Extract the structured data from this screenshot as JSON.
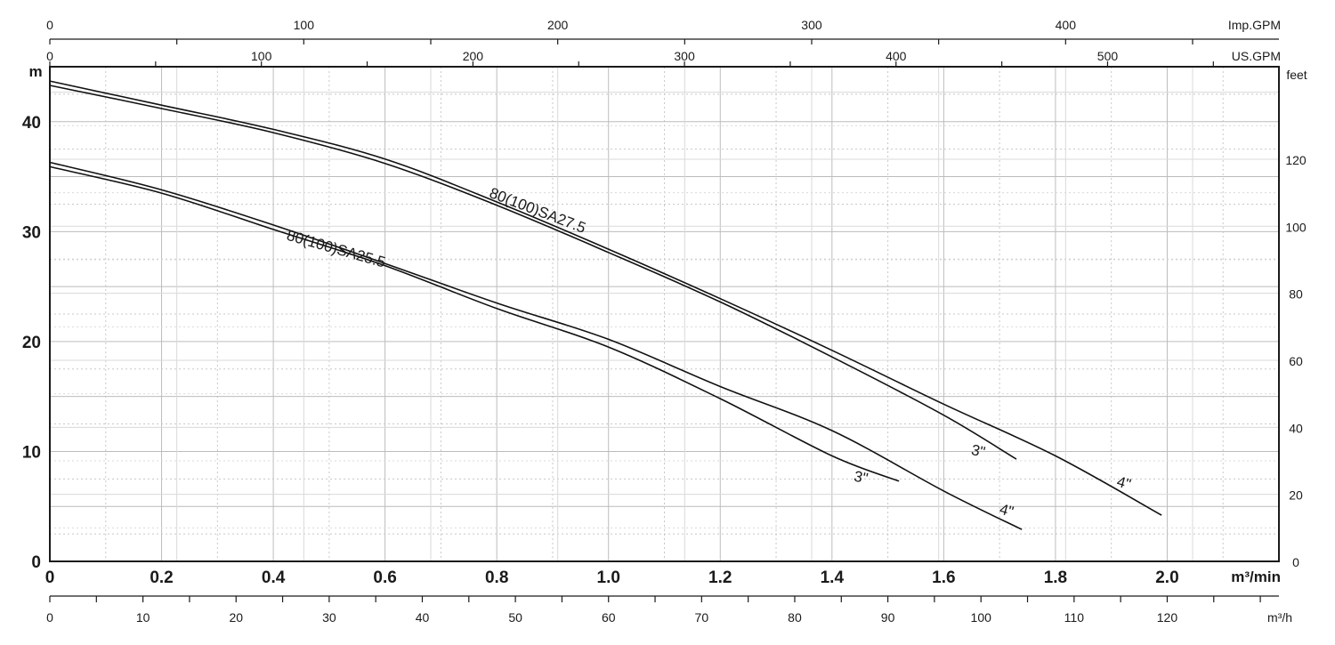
{
  "chart_data": {
    "type": "line",
    "title": "",
    "axes": {
      "x_main": {
        "label": "m³/min",
        "range": [
          0,
          2.2
        ],
        "ticks": [
          "0",
          "0.2",
          "0.4",
          "0.6",
          "0.8",
          "1.0",
          "1.2",
          "1.4",
          "1.6",
          "1.8",
          "2.0"
        ]
      },
      "x_m3h": {
        "label": "m³/h",
        "range": [
          0,
          132
        ],
        "ticks": [
          "0",
          "10",
          "20",
          "30",
          "40",
          "50",
          "60",
          "70",
          "80",
          "90",
          "100",
          "110",
          "120"
        ]
      },
      "x_usgpm": {
        "label": "US.GPM",
        "range": [
          0,
          581
        ],
        "ticks": [
          "0",
          "100",
          "200",
          "300",
          "400",
          "500"
        ]
      },
      "x_impgpm": {
        "label": "Imp.GPM",
        "range": [
          0,
          484
        ],
        "ticks": [
          "0",
          "100",
          "200",
          "300",
          "400"
        ]
      },
      "y_m": {
        "label": "m",
        "range": [
          0,
          45
        ],
        "ticks": [
          "0",
          "10",
          "20",
          "30",
          "40"
        ]
      },
      "y_feet": {
        "label": "feet",
        "range": [
          0,
          147.6
        ],
        "ticks": [
          "0",
          "20",
          "40",
          "60",
          "80",
          "100",
          "120"
        ]
      }
    },
    "grid": true,
    "series": [
      {
        "name": "80(100)SA27.5",
        "variant": "3\"",
        "x": [
          0,
          0.2,
          0.4,
          0.6,
          0.8,
          1.0,
          1.2,
          1.4,
          1.6,
          1.73
        ],
        "y": [
          43.3,
          41.2,
          39.0,
          36.2,
          32.4,
          28.1,
          23.6,
          18.6,
          13.3,
          9.3
        ]
      },
      {
        "name": "80(100)SA27.5",
        "variant": "4\"",
        "x": [
          0,
          0.2,
          0.4,
          0.6,
          0.8,
          1.0,
          1.2,
          1.4,
          1.6,
          1.8,
          1.99
        ],
        "y": [
          43.7,
          41.5,
          39.3,
          36.6,
          32.7,
          28.4,
          23.9,
          19.2,
          14.3,
          9.6,
          4.2
        ]
      },
      {
        "name": "80(100)SA25.5",
        "variant": "3\"",
        "x": [
          0,
          0.2,
          0.4,
          0.6,
          0.8,
          1.0,
          1.2,
          1.4,
          1.52
        ],
        "y": [
          35.9,
          33.5,
          30.2,
          26.9,
          23.0,
          19.5,
          14.8,
          9.6,
          7.3
        ]
      },
      {
        "name": "80(100)SA25.5",
        "variant": "4\"",
        "x": [
          0,
          0.2,
          0.4,
          0.6,
          0.8,
          1.0,
          1.2,
          1.4,
          1.6,
          1.74
        ],
        "y": [
          36.3,
          33.8,
          30.6,
          27.1,
          23.5,
          20.2,
          15.9,
          11.9,
          6.4,
          2.9
        ]
      }
    ],
    "annotations": [
      {
        "text": "80(100)SA27.5",
        "x": 0.87,
        "y": 31.5
      },
      {
        "text": "80(100)SA25.5",
        "x": 0.51,
        "y": 28.0
      },
      {
        "text": "3\"",
        "x": 1.66,
        "y": 9.6
      },
      {
        "text": "4\"",
        "x": 1.92,
        "y": 6.7
      },
      {
        "text": "3\"",
        "x": 1.45,
        "y": 7.2
      },
      {
        "text": "4\"",
        "x": 1.71,
        "y": 4.2
      }
    ]
  }
}
